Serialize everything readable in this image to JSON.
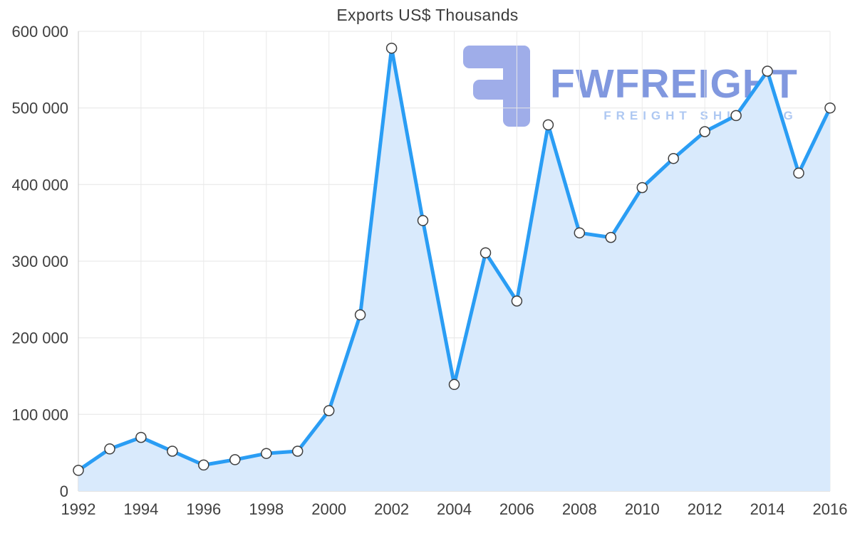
{
  "page": {
    "title": "Exports US$ Thousands"
  },
  "watermark": {
    "brand": "FWFREIGHT",
    "tagline": "FREIGHT SHIPPING",
    "icon": "fwfreight-logo-icon",
    "icon_color": "#9aa9e8",
    "brand_color": "#7b93de",
    "tagline_color": "#aac6f2"
  },
  "chart_data": {
    "type": "area",
    "title": "Exports US$ Thousands",
    "xlabel": "",
    "ylabel": "",
    "x": [
      1992,
      1993,
      1994,
      1995,
      1996,
      1997,
      1998,
      1999,
      2000,
      2001,
      2002,
      2003,
      2004,
      2005,
      2006,
      2007,
      2008,
      2009,
      2010,
      2011,
      2012,
      2013,
      2014,
      2015,
      2016
    ],
    "values": [
      27000,
      55000,
      70000,
      52000,
      34000,
      41000,
      49000,
      52000,
      105000,
      230000,
      578000,
      353000,
      139000,
      311000,
      248000,
      478000,
      337000,
      331000,
      396000,
      434000,
      469000,
      490000,
      548000,
      415000,
      500000
    ],
    "ylim": [
      0,
      600000
    ],
    "yticks": [
      0,
      100000,
      200000,
      300000,
      400000,
      500000,
      600000
    ],
    "ytick_labels": [
      "0",
      "100 000",
      "200 000",
      "300 000",
      "400 000",
      "500 000",
      "600 000"
    ],
    "xticks": [
      1992,
      1994,
      1996,
      1998,
      2000,
      2002,
      2004,
      2006,
      2008,
      2010,
      2012,
      2014,
      2016
    ],
    "xtick_labels": [
      "1992",
      "1994",
      "1996",
      "1998",
      "2000",
      "2002",
      "2004",
      "2006",
      "2008",
      "2010",
      "2012",
      "2014",
      "2016"
    ],
    "grid": true,
    "line_color": "#2a9df4",
    "area_color": "#d9eafc",
    "marker_fill": "#ffffff",
    "marker_stroke": "#3f3f3f",
    "axis_text_color": "#3f3f3f",
    "grid_color": "#e5e5e5"
  }
}
